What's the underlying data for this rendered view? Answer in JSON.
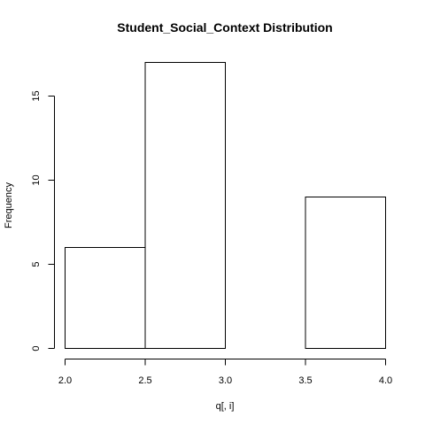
{
  "chart_data": {
    "type": "bar",
    "title": "Student_Social_Context Distribution",
    "xlabel": "q[, i]",
    "ylabel": "Frequency",
    "bins": [
      {
        "start": 2.0,
        "end": 2.5,
        "value": 6
      },
      {
        "start": 2.5,
        "end": 3.0,
        "value": 17
      },
      {
        "start": 3.0,
        "end": 3.5,
        "value": 0
      },
      {
        "start": 3.5,
        "end": 4.0,
        "value": 9
      }
    ],
    "xlim": [
      2.0,
      4.0
    ],
    "ylim": [
      0,
      17
    ],
    "x_ticks": [
      "2.0",
      "2.5",
      "3.0",
      "3.5",
      "4.0"
    ],
    "y_ticks": [
      "0",
      "5",
      "10",
      "15"
    ],
    "grid": false,
    "bar_fill": "#ffffff",
    "bar_stroke": "#000000"
  }
}
